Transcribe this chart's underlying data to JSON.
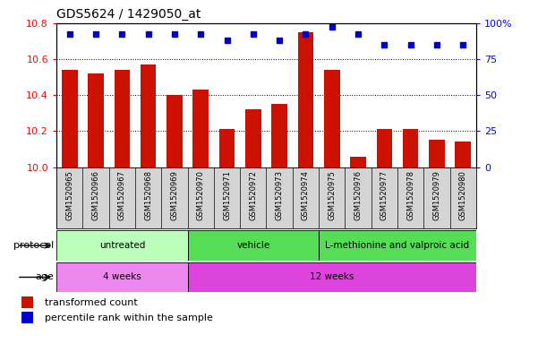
{
  "title": "GDS5624 / 1429050_at",
  "samples": [
    "GSM1520965",
    "GSM1520966",
    "GSM1520967",
    "GSM1520968",
    "GSM1520969",
    "GSM1520970",
    "GSM1520971",
    "GSM1520972",
    "GSM1520973",
    "GSM1520974",
    "GSM1520975",
    "GSM1520976",
    "GSM1520977",
    "GSM1520978",
    "GSM1520979",
    "GSM1520980"
  ],
  "transformed_count": [
    10.54,
    10.52,
    10.54,
    10.57,
    10.4,
    10.43,
    10.21,
    10.32,
    10.35,
    10.75,
    10.54,
    10.06,
    10.21,
    10.21,
    10.15,
    10.14
  ],
  "percentile_rank": [
    92,
    92,
    92,
    92,
    92,
    92,
    88,
    92,
    88,
    92,
    97,
    92,
    85,
    85,
    85,
    85
  ],
  "ymin": 10.0,
  "ymax": 10.8,
  "yticks_left": [
    10.0,
    10.2,
    10.4,
    10.6,
    10.8
  ],
  "yticks_right": [
    0,
    25,
    50,
    75,
    100
  ],
  "bar_color": "#cc1100",
  "dot_color": "#0000cc",
  "protocol_groups": [
    {
      "label": "untreated",
      "start": 0,
      "end": 5,
      "color": "#bbffbb"
    },
    {
      "label": "vehicle",
      "start": 5,
      "end": 10,
      "color": "#55dd55"
    },
    {
      "label": "L-methionine and valproic acid",
      "start": 10,
      "end": 16,
      "color": "#55dd55"
    }
  ],
  "age_groups": [
    {
      "label": "4 weeks",
      "start": 0,
      "end": 5,
      "color": "#ee88ee"
    },
    {
      "label": "12 weeks",
      "start": 5,
      "end": 16,
      "color": "#dd44dd"
    }
  ],
  "legend_bar_label": "transformed count",
  "legend_dot_label": "percentile rank within the sample",
  "label_protocol": "protocol",
  "label_age": "age"
}
